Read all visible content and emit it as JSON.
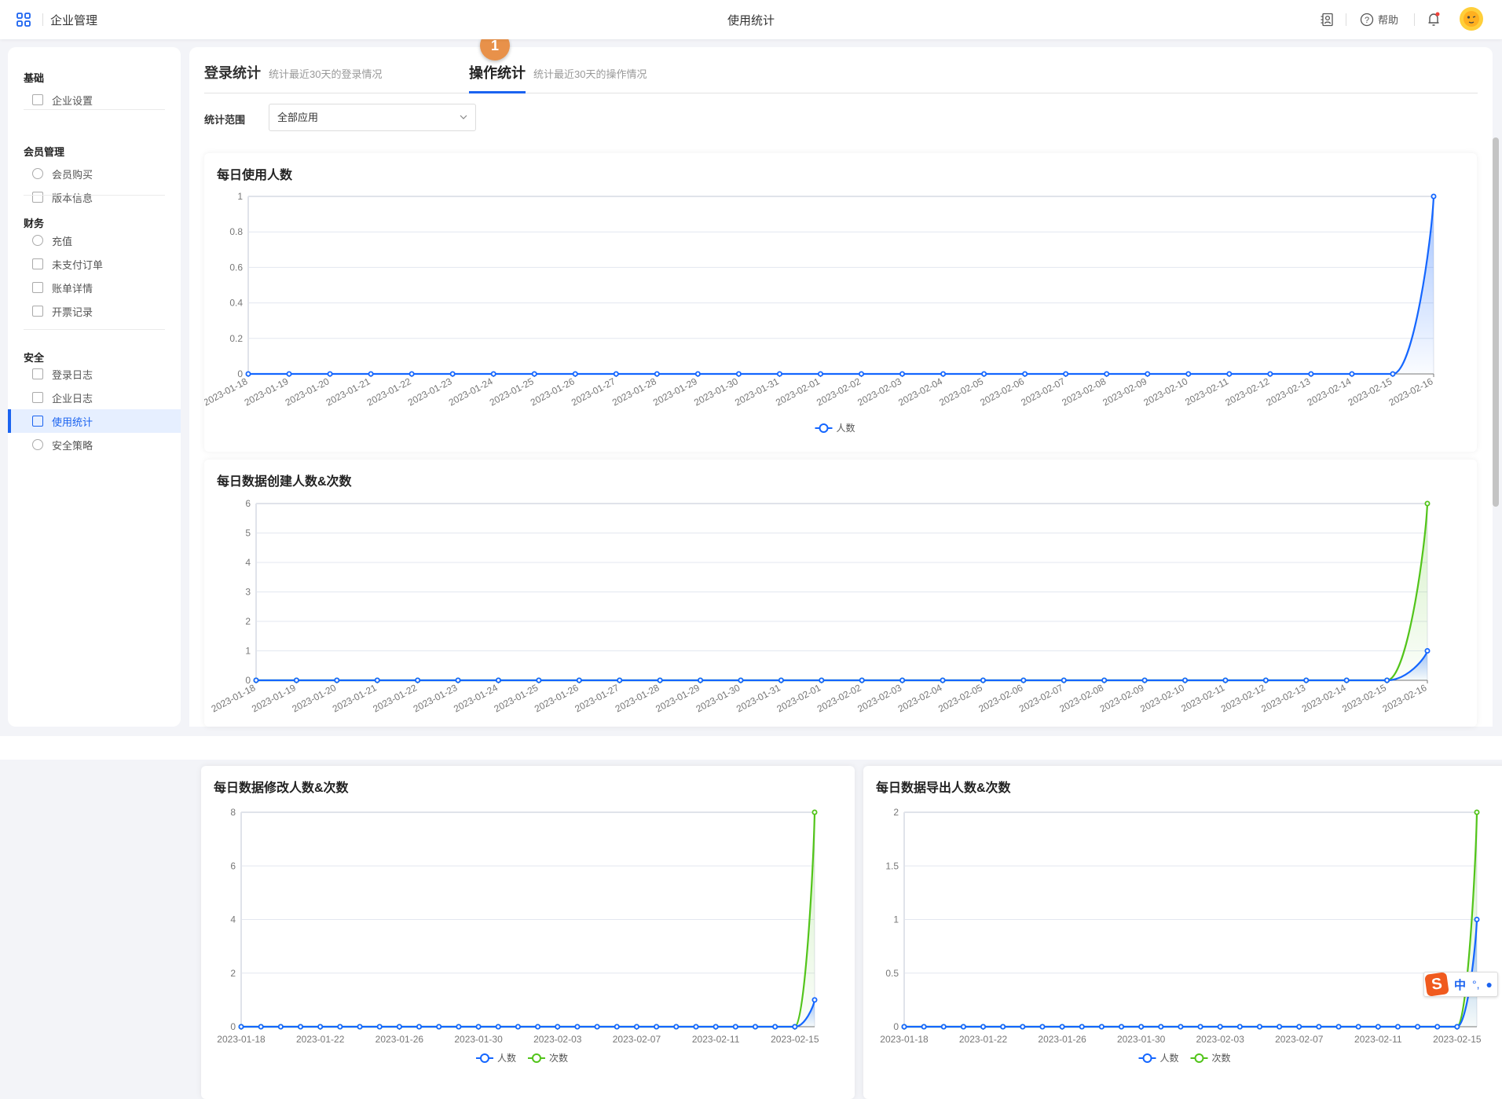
{
  "header": {
    "app_title": "企业管理",
    "page_title": "使用统计",
    "help_label": "帮助",
    "icons": {
      "apps": "grid-icon",
      "contacts": "contact-book-icon",
      "help": "question-circle-icon",
      "bell": "bell-icon",
      "avatar": "sun-avatar"
    }
  },
  "sidebar": {
    "groups": [
      {
        "label": "基础",
        "items": [
          {
            "label": "企业设置",
            "icon": "building-icon"
          }
        ]
      },
      {
        "label": "会员管理",
        "items": [
          {
            "label": "会员购买",
            "icon": "diamond-icon"
          },
          {
            "label": "版本信息",
            "icon": "version-icon"
          }
        ]
      },
      {
        "label": "财务",
        "items": [
          {
            "label": "充值",
            "icon": "yen-icon"
          },
          {
            "label": "未支付订单",
            "icon": "wallet-icon"
          },
          {
            "label": "账单详情",
            "icon": "bill-icon"
          },
          {
            "label": "开票记录",
            "icon": "invoice-icon"
          }
        ]
      },
      {
        "label": "安全",
        "items": [
          {
            "label": "登录日志",
            "icon": "login-icon"
          },
          {
            "label": "企业日志",
            "icon": "log-icon"
          },
          {
            "label": "使用统计",
            "icon": "chart-icon",
            "active": true
          },
          {
            "label": "安全策略",
            "icon": "shield-icon"
          }
        ]
      }
    ]
  },
  "tabs": [
    {
      "label": "登录统计",
      "desc": "统计最近30天的登录情况"
    },
    {
      "label": "操作统计",
      "desc": "统计最近30天的操作情况",
      "active": true,
      "badge": "1"
    }
  ],
  "filter": {
    "label": "统计范围",
    "value": "全部应用"
  },
  "colors": {
    "accent": "#1b63f0",
    "series_people": "#1466ff",
    "series_times": "#52c41a",
    "badge": "#e8914a"
  },
  "ime": {
    "label": "中"
  },
  "chart_data": [
    {
      "type": "line",
      "title": "每日使用人数",
      "ylim": [
        0,
        1
      ],
      "yticks": [
        "0",
        "0.2",
        "0.4",
        "0.6",
        "0.8",
        "1"
      ],
      "x": [
        "2023-01-18",
        "2023-01-19",
        "2023-01-20",
        "2023-01-21",
        "2023-01-22",
        "2023-01-23",
        "2023-01-24",
        "2023-01-25",
        "2023-01-26",
        "2023-01-27",
        "2023-01-28",
        "2023-01-29",
        "2023-01-30",
        "2023-01-31",
        "2023-02-01",
        "2023-02-02",
        "2023-02-03",
        "2023-02-04",
        "2023-02-05",
        "2023-02-06",
        "2023-02-07",
        "2023-02-08",
        "2023-02-09",
        "2023-02-10",
        "2023-02-11",
        "2023-02-12",
        "2023-02-13",
        "2023-02-14",
        "2023-02-15",
        "2023-02-16"
      ],
      "series": [
        {
          "name": "人数",
          "values": [
            0,
            0,
            0,
            0,
            0,
            0,
            0,
            0,
            0,
            0,
            0,
            0,
            0,
            0,
            0,
            0,
            0,
            0,
            0,
            0,
            0,
            0,
            0,
            0,
            0,
            0,
            0,
            0,
            0,
            1
          ]
        }
      ],
      "legend": "bottom"
    },
    {
      "type": "line",
      "title": "每日数据创建人数&次数",
      "ylim": [
        0,
        6
      ],
      "yticks": [
        "0",
        "1",
        "2",
        "3",
        "4",
        "5",
        "6"
      ],
      "x": [
        "2023-01-18",
        "2023-01-19",
        "2023-01-20",
        "2023-01-21",
        "2023-01-22",
        "2023-01-23",
        "2023-01-24",
        "2023-01-25",
        "2023-01-26",
        "2023-01-27",
        "2023-01-28",
        "2023-01-29",
        "2023-01-30",
        "2023-01-31",
        "2023-02-01",
        "2023-02-02",
        "2023-02-03",
        "2023-02-04",
        "2023-02-05",
        "2023-02-06",
        "2023-02-07",
        "2023-02-08",
        "2023-02-09",
        "2023-02-10",
        "2023-02-11",
        "2023-02-12",
        "2023-02-13",
        "2023-02-14",
        "2023-02-15",
        "2023-02-16"
      ],
      "series": [
        {
          "name": "人数",
          "values": [
            0,
            0,
            0,
            0,
            0,
            0,
            0,
            0,
            0,
            0,
            0,
            0,
            0,
            0,
            0,
            0,
            0,
            0,
            0,
            0,
            0,
            0,
            0,
            0,
            0,
            0,
            0,
            0,
            0,
            1
          ]
        },
        {
          "name": "次数",
          "values": [
            0,
            0,
            0,
            0,
            0,
            0,
            0,
            0,
            0,
            0,
            0,
            0,
            0,
            0,
            0,
            0,
            0,
            0,
            0,
            0,
            0,
            0,
            0,
            0,
            0,
            0,
            0,
            0,
            0,
            6
          ]
        }
      ]
    },
    {
      "type": "line",
      "title": "每日数据修改人数&次数",
      "ylim": [
        0,
        8
      ],
      "yticks": [
        "0",
        "2",
        "4",
        "6",
        "8"
      ],
      "x": [
        "2023-01-18",
        "2023-01-19",
        "2023-01-20",
        "2023-01-21",
        "2023-01-22",
        "2023-01-23",
        "2023-01-24",
        "2023-01-25",
        "2023-01-26",
        "2023-01-27",
        "2023-01-28",
        "2023-01-29",
        "2023-01-30",
        "2023-01-31",
        "2023-02-01",
        "2023-02-02",
        "2023-02-03",
        "2023-02-04",
        "2023-02-05",
        "2023-02-06",
        "2023-02-07",
        "2023-02-08",
        "2023-02-09",
        "2023-02-10",
        "2023-02-11",
        "2023-02-12",
        "2023-02-13",
        "2023-02-14",
        "2023-02-15",
        "2023-02-16"
      ],
      "xtick_labels": [
        "2023-01-18",
        "2023-01-22",
        "2023-01-26",
        "2023-01-30",
        "2023-02-03",
        "2023-02-07",
        "2023-02-11",
        "2023-02-15"
      ],
      "series": [
        {
          "name": "人数",
          "values": [
            0,
            0,
            0,
            0,
            0,
            0,
            0,
            0,
            0,
            0,
            0,
            0,
            0,
            0,
            0,
            0,
            0,
            0,
            0,
            0,
            0,
            0,
            0,
            0,
            0,
            0,
            0,
            0,
            0,
            1
          ]
        },
        {
          "name": "次数",
          "values": [
            0,
            0,
            0,
            0,
            0,
            0,
            0,
            0,
            0,
            0,
            0,
            0,
            0,
            0,
            0,
            0,
            0,
            0,
            0,
            0,
            0,
            0,
            0,
            0,
            0,
            0,
            0,
            0,
            0,
            8
          ]
        }
      ],
      "legend": "bottom"
    },
    {
      "type": "line",
      "title": "每日数据导出人数&次数",
      "ylim": [
        0,
        2
      ],
      "yticks": [
        "0",
        "0.5",
        "1",
        "1.5",
        "2"
      ],
      "x": [
        "2023-01-18",
        "2023-01-19",
        "2023-01-20",
        "2023-01-21",
        "2023-01-22",
        "2023-01-23",
        "2023-01-24",
        "2023-01-25",
        "2023-01-26",
        "2023-01-27",
        "2023-01-28",
        "2023-01-29",
        "2023-01-30",
        "2023-01-31",
        "2023-02-01",
        "2023-02-02",
        "2023-02-03",
        "2023-02-04",
        "2023-02-05",
        "2023-02-06",
        "2023-02-07",
        "2023-02-08",
        "2023-02-09",
        "2023-02-10",
        "2023-02-11",
        "2023-02-12",
        "2023-02-13",
        "2023-02-14",
        "2023-02-15",
        "2023-02-16"
      ],
      "xtick_labels": [
        "2023-01-18",
        "2023-01-22",
        "2023-01-26",
        "2023-01-30",
        "2023-02-03",
        "2023-02-07",
        "2023-02-11",
        "2023-02-15"
      ],
      "series": [
        {
          "name": "人数",
          "values": [
            0,
            0,
            0,
            0,
            0,
            0,
            0,
            0,
            0,
            0,
            0,
            0,
            0,
            0,
            0,
            0,
            0,
            0,
            0,
            0,
            0,
            0,
            0,
            0,
            0,
            0,
            0,
            0,
            0,
            1
          ]
        },
        {
          "name": "次数",
          "values": [
            0,
            0,
            0,
            0,
            0,
            0,
            0,
            0,
            0,
            0,
            0,
            0,
            0,
            0,
            0,
            0,
            0,
            0,
            0,
            0,
            0,
            0,
            0,
            0,
            0,
            0,
            0,
            0,
            0,
            2
          ]
        }
      ],
      "legend": "bottom"
    }
  ]
}
